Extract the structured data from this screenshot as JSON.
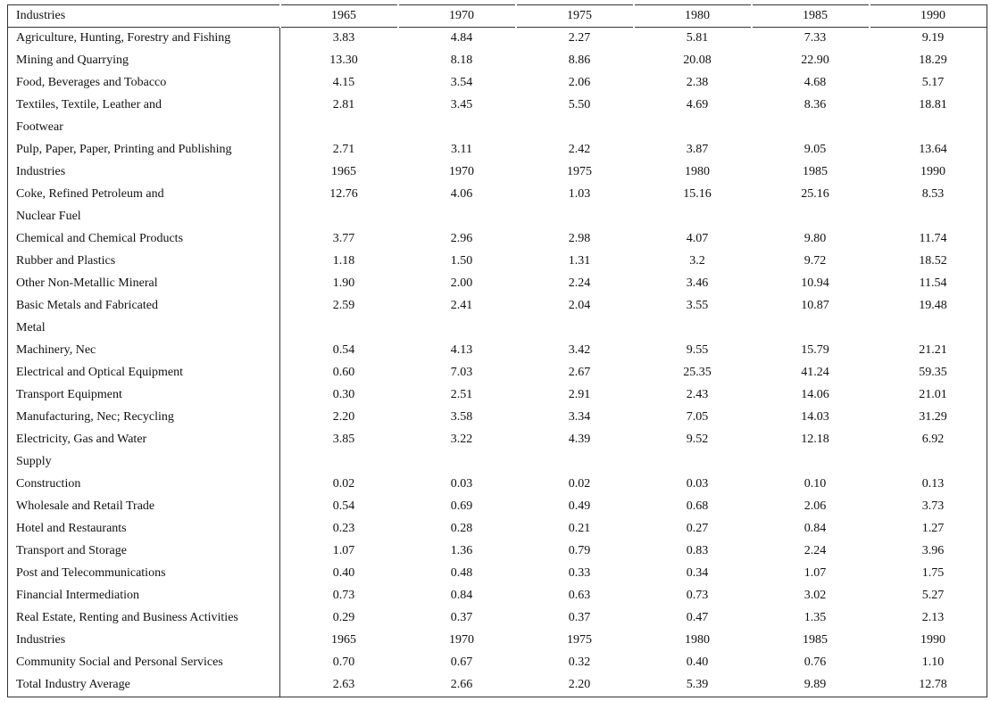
{
  "table": {
    "header": [
      "Industries",
      "1965",
      "1970",
      "1975",
      "1980",
      "1985",
      "1990"
    ],
    "rows": [
      [
        "Agriculture, Hunting, Forestry and Fishing",
        "3.83",
        "4.84",
        "2.27",
        "5.81",
        "7.33",
        "9.19"
      ],
      [
        "Mining and Quarrying",
        "13.30",
        "8.18",
        "8.86",
        "20.08",
        "22.90",
        "18.29"
      ],
      [
        "Food, Beverages and Tobacco",
        "4.15",
        "3.54",
        "2.06",
        "2.38",
        "4.68",
        "5.17"
      ],
      [
        "Textiles, Textile, Leather and",
        "2.81",
        "3.45",
        "5.50",
        "4.69",
        "8.36",
        "18.81"
      ],
      [
        "Footwear"
      ],
      [
        "Pulp, Paper, Paper, Printing and Publishing",
        "2.71",
        "3.11",
        "2.42",
        "3.87",
        "9.05",
        "13.64"
      ],
      [
        "Industries",
        "1965",
        "1970",
        "1975",
        "1980",
        "1985",
        "1990"
      ],
      [
        "Coke, Refined Petroleum and",
        "12.76",
        "4.06",
        "1.03",
        "15.16",
        "25.16",
        "8.53"
      ],
      [
        "Nuclear Fuel"
      ],
      [
        "Chemical and Chemical Products",
        "3.77",
        "2.96",
        "2.98",
        "4.07",
        "9.80",
        "11.74"
      ],
      [
        "Rubber and Plastics",
        "1.18",
        "1.50",
        "1.31",
        "3.2",
        "9.72",
        "18.52"
      ],
      [
        "Other Non-Metallic Mineral",
        "1.90",
        "2.00",
        "2.24",
        "3.46",
        "10.94",
        "11.54"
      ],
      [
        "Basic Metals and Fabricated",
        "2.59",
        "2.41",
        "2.04",
        "3.55",
        "10.87",
        "19.48"
      ],
      [
        "Metal"
      ],
      [
        "Machinery, Nec",
        "0.54",
        "4.13",
        "3.42",
        "9.55",
        "15.79",
        "21.21"
      ],
      [
        "Electrical and Optical Equipment",
        "0.60",
        "7.03",
        "2.67",
        "25.35",
        "41.24",
        "59.35"
      ],
      [
        "Transport Equipment",
        "0.30",
        "2.51",
        "2.91",
        "2.43",
        "14.06",
        "21.01"
      ],
      [
        "Manufacturing, Nec; Recycling",
        "2.20",
        "3.58",
        "3.34",
        "7.05",
        "14.03",
        "31.29"
      ],
      [
        "Electricity, Gas and Water",
        "3.85",
        "3.22",
        "4.39",
        "9.52",
        "12.18",
        "6.92"
      ],
      [
        "Supply"
      ],
      [
        "Construction",
        "0.02",
        "0.03",
        "0.02",
        "0.03",
        "0.10",
        "0.13"
      ],
      [
        "Wholesale and Retail Trade",
        "0.54",
        "0.69",
        "0.49",
        "0.68",
        "2.06",
        "3.73"
      ],
      [
        "Hotel and Restaurants",
        "0.23",
        "0.28",
        "0.21",
        "0.27",
        "0.84",
        "1.27"
      ],
      [
        "Transport and Storage",
        "1.07",
        "1.36",
        "0.79",
        "0.83",
        "2.24",
        "3.96"
      ],
      [
        "Post and Telecommunications",
        "0.40",
        "0.48",
        "0.33",
        "0.34",
        "1.07",
        "1.75"
      ],
      [
        "Financial Intermediation",
        "0.73",
        "0.84",
        "0.63",
        "0.73",
        "3.02",
        "5.27"
      ],
      [
        "Real Estate, Renting and Business Activities",
        "0.29",
        "0.37",
        "0.37",
        "0.47",
        "1.35",
        "2.13"
      ],
      [
        "Industries",
        "1965",
        "1970",
        "1975",
        "1980",
        "1985",
        "1990"
      ],
      [
        "Community Social and Personal Services",
        "0.70",
        "0.67",
        "0.32",
        "0.40",
        "0.76",
        "1.10"
      ],
      [
        "Total Industry Average",
        "2.63",
        "2.66",
        "2.20",
        "5.39",
        "9.89",
        "12.78"
      ]
    ]
  }
}
